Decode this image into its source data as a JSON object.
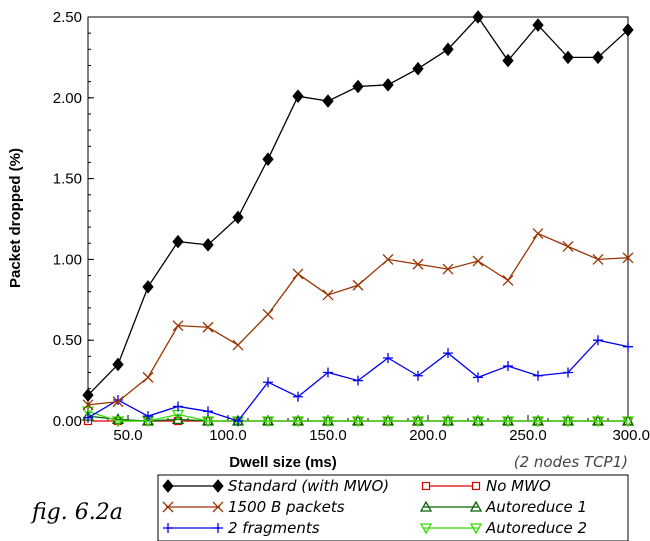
{
  "figure_label": "fig. 6.2a",
  "chart_data": {
    "type": "line",
    "xlabel": "Dwell size (ms)",
    "ylabel": "Packet dropped (%)",
    "note": "(2 nodes TCP1)",
    "xlim": [
      30,
      300
    ],
    "ylim": [
      0,
      2.5
    ],
    "x_ticks": [
      50,
      100,
      150,
      200,
      250,
      300
    ],
    "x_tick_labels": [
      "50.0",
      "100.0",
      "150.0",
      "200.0",
      "250.0",
      "300.0"
    ],
    "y_ticks": [
      0,
      0.5,
      1.0,
      1.5,
      2.0,
      2.5
    ],
    "y_tick_labels": [
      "0.00",
      "0.50",
      "1.00",
      "1.50",
      "2.00",
      "2.50"
    ],
    "x": [
      30,
      45,
      60,
      75,
      90,
      105,
      120,
      135,
      150,
      165,
      180,
      195,
      210,
      225,
      240,
      255,
      270,
      285,
      300
    ],
    "series": [
      {
        "name": "Standard (with MWO)",
        "color": "#000000",
        "marker": "diamond-filled",
        "values": [
          0.16,
          0.35,
          0.83,
          1.11,
          1.09,
          1.26,
          1.62,
          2.01,
          1.98,
          2.07,
          2.08,
          2.18,
          2.3,
          2.5,
          2.23,
          2.45,
          2.25,
          2.25,
          2.42
        ]
      },
      {
        "name": "1500 B packets",
        "color": "#993300",
        "marker": "x",
        "values": [
          0.1,
          0.12,
          0.27,
          0.59,
          0.58,
          0.47,
          0.66,
          0.91,
          0.78,
          0.84,
          1.0,
          0.97,
          0.94,
          0.99,
          0.87,
          1.16,
          1.08,
          1.0,
          1.01
        ]
      },
      {
        "name": "2 fragments",
        "color": "#0000ee",
        "marker": "plus",
        "values": [
          0.02,
          0.13,
          0.03,
          0.09,
          0.06,
          0.0,
          0.24,
          0.15,
          0.3,
          0.25,
          0.39,
          0.28,
          0.42,
          0.27,
          0.34,
          0.28,
          0.3,
          0.5,
          0.46
        ]
      },
      {
        "name": "No MWO",
        "color": "#dd0000",
        "marker": "square-open",
        "values": [
          0.0,
          0.0,
          0.0,
          0.0,
          0.0,
          0.0,
          0.0,
          0.0,
          0.0,
          0.0,
          0.0,
          0.0,
          0.0,
          0.0,
          0.0,
          0.0,
          0.0,
          0.0,
          0.0
        ]
      },
      {
        "name": "Autoreduce 1",
        "color": "#006600",
        "marker": "triangle-up-open",
        "values": [
          0.03,
          0.01,
          0.0,
          0.01,
          0.0,
          0.0,
          0.0,
          0.0,
          0.0,
          0.0,
          0.0,
          0.0,
          0.0,
          0.0,
          0.0,
          0.0,
          0.0,
          0.0,
          0.0
        ]
      },
      {
        "name": "Autoreduce 2",
        "color": "#33dd00",
        "marker": "triangle-down-open",
        "values": [
          0.06,
          0.0,
          0.0,
          0.04,
          0.0,
          0.0,
          0.0,
          0.0,
          0.0,
          0.0,
          0.0,
          0.0,
          0.0,
          0.0,
          0.0,
          0.0,
          0.0,
          0.0,
          0.0
        ]
      }
    ],
    "legend": {
      "placement": "bottom-right",
      "order": [
        0,
        3,
        1,
        4,
        2,
        5
      ]
    },
    "grid": false
  }
}
